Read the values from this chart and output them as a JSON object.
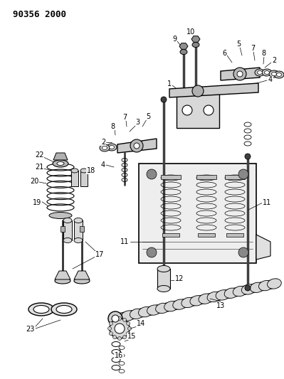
{
  "title": "90356 2000",
  "bg": "#ffffff",
  "lc": "#000000",
  "fs_title": 9,
  "fs_label": 7,
  "fig_w": 3.99,
  "fig_h": 5.33,
  "dpi": 100
}
